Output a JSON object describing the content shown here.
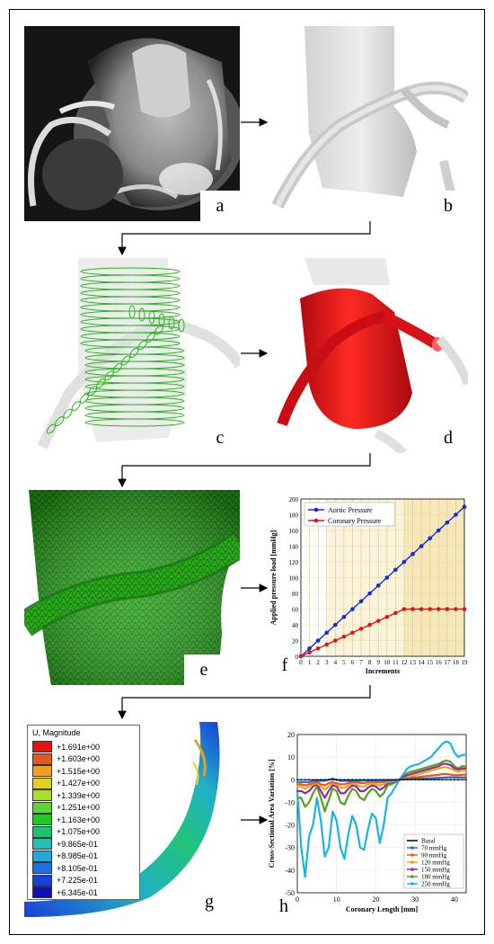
{
  "panels": {
    "a": "a",
    "b": "b",
    "c": "c",
    "d": "d",
    "e": "e",
    "f": "f",
    "g": "g",
    "h": "h"
  },
  "colors": {
    "aortic": "#1428e0",
    "coronary": "#e01414",
    "mesh_green": "#27a41c",
    "solid_red": "#e0141c",
    "ct_gray": "#8a8a8a"
  },
  "fem_legend": {
    "title": "U, Magnitude",
    "values": [
      "+1.691e+00",
      "+1.603e+00",
      "+1.515e+00",
      "+1.427e+00",
      "+1.339e+00",
      "+1.251e+00",
      "+1.163e+00",
      "+1.075e+00",
      "+9.865e-01",
      "+8.985e-01",
      "+8.105e-01",
      "+7.225e-01",
      "+6.345e-01"
    ],
    "colors": [
      "#e81010",
      "#e8561a",
      "#f0a020",
      "#e0d020",
      "#a8e020",
      "#58d830",
      "#20c828",
      "#20c070",
      "#20c0b8",
      "#20a8e0",
      "#2070e0",
      "#1840d8",
      "#1010b8"
    ]
  },
  "chart_data": [
    {
      "type": "line",
      "xlabel": "Increments",
      "ylabel": "Applied pressure load [mmHg]",
      "xlim": [
        0,
        19
      ],
      "ylim": [
        0,
        200
      ],
      "x": [
        0,
        1,
        2,
        3,
        4,
        5,
        6,
        7,
        8,
        9,
        10,
        11,
        12,
        13,
        14,
        15,
        16,
        17,
        18,
        19
      ],
      "xticks": [
        0,
        1,
        2,
        3,
        4,
        5,
        6,
        7,
        8,
        9,
        10,
        11,
        12,
        13,
        14,
        15,
        16,
        17,
        18,
        19
      ],
      "yticks": [
        0,
        20,
        40,
        60,
        80,
        100,
        120,
        140,
        160,
        180,
        200
      ],
      "legend_position": "top-left",
      "series": [
        {
          "name": "Aortic Pressure",
          "color": "#1428e0",
          "values": [
            0,
            10,
            20,
            30,
            40,
            50,
            60,
            70,
            80,
            90,
            100,
            110,
            120,
            130,
            140,
            150,
            160,
            170,
            180,
            190
          ]
        },
        {
          "name": "Coronary Pressure",
          "color": "#e01414",
          "values": [
            0,
            5,
            10,
            15,
            20,
            25,
            30,
            35,
            40,
            45,
            50,
            55,
            60,
            60,
            60,
            60,
            60,
            60,
            60,
            60
          ]
        }
      ]
    },
    {
      "type": "line",
      "xlabel": "Coronary Length [mm]",
      "ylabel": "Cross-Sectional Area Variation [%]",
      "xlim": [
        0,
        43
      ],
      "ylim": [
        -50,
        20
      ],
      "xticks": [
        0,
        10,
        20,
        30,
        40
      ],
      "yticks": [
        -50,
        -40,
        -30,
        -20,
        -10,
        0,
        10,
        20
      ],
      "legend_position": "bottom-right",
      "x": [
        0,
        1,
        2,
        3,
        4,
        5,
        6,
        7,
        8,
        9,
        10,
        11,
        12,
        13,
        14,
        15,
        16,
        17,
        18,
        19,
        20,
        21,
        22,
        23,
        24,
        25,
        26,
        27,
        28,
        29,
        30,
        31,
        32,
        33,
        34,
        35,
        36,
        37,
        38,
        39,
        40,
        41,
        42,
        43
      ],
      "series": [
        {
          "name": "Basal",
          "color": "#000000",
          "values": [
            0,
            0,
            0,
            0,
            0,
            0,
            0,
            0,
            0,
            0,
            0,
            0,
            0,
            0,
            0,
            0,
            0,
            0,
            0,
            0,
            0,
            0,
            0,
            0,
            0,
            0,
            0,
            0,
            0,
            0,
            0,
            0,
            0,
            0,
            0,
            0,
            0,
            0,
            0,
            0,
            0,
            0,
            0,
            0
          ]
        },
        {
          "name": "70 mmHg",
          "color": "#1f6fd1",
          "values": [
            -1,
            -1,
            -1,
            -1,
            -0.5,
            -0.5,
            -0.5,
            -0.5,
            0,
            0.5,
            0,
            -0.5,
            -0.5,
            -0.5,
            -0.5,
            -0.5,
            -0.5,
            -0.3,
            -0.3,
            -0.3,
            -0.3,
            -0.3,
            -0.3,
            -0.2,
            -0.2,
            -0.1,
            0,
            0.2,
            0.3,
            0.4,
            0.5,
            0.5,
            0.5,
            0.5,
            0.6,
            0.7,
            0.8,
            0.9,
            1,
            1.1,
            1,
            1,
            1,
            1
          ]
        },
        {
          "name": "90 mmHg",
          "color": "#f05a14",
          "values": [
            -2,
            -2,
            -2.5,
            -2,
            -1.5,
            -1,
            -2,
            -2.5,
            -1.5,
            -1,
            -1.5,
            -2,
            -2,
            -1.5,
            -1,
            -1,
            -1.5,
            -1.5,
            -1,
            -0.8,
            -1,
            -1.2,
            -1,
            -0.5,
            -0.4,
            -0.2,
            0,
            0.3,
            0.5,
            0.8,
            1,
            1.2,
            1.4,
            1.6,
            1.8,
            2,
            2.2,
            2.5,
            2.5,
            2.3,
            2,
            2,
            2.2,
            2.2
          ]
        },
        {
          "name": "120 mmHg",
          "color": "#f5a214",
          "values": [
            -3,
            -3,
            -4,
            -3,
            -2,
            -1.5,
            -3,
            -4.5,
            -3,
            -1.5,
            -2,
            -3.5,
            -3.5,
            -2.5,
            -1.5,
            -2,
            -3,
            -3,
            -2,
            -1.5,
            -2,
            -2.5,
            -2,
            -1,
            -0.8,
            -0.4,
            0,
            0.5,
            1,
            1.5,
            2,
            2.5,
            3,
            3.5,
            4,
            4.5,
            5,
            5.5,
            5.5,
            5,
            4,
            3.5,
            4,
            4
          ]
        },
        {
          "name": "150 mmHg",
          "color": "#8e2ca8",
          "values": [
            -5,
            -5,
            -6,
            -5,
            -3,
            -2,
            -5,
            -8,
            -5,
            -2.5,
            -3,
            -6,
            -6,
            -4,
            -2.5,
            -3,
            -5,
            -5,
            -3.5,
            -2.5,
            -3,
            -4.5,
            -3.5,
            -1.5,
            -1.2,
            -0.7,
            0,
            1,
            2,
            2.5,
            3,
            3.5,
            4,
            4.5,
            5,
            5.5,
            6,
            7,
            7,
            6.5,
            5,
            4.5,
            5,
            5
          ]
        },
        {
          "name": "180 mmHg",
          "color": "#5aa01e",
          "values": [
            -8,
            -8,
            -12,
            -10,
            -6,
            -3,
            -8,
            -14,
            -9,
            -4,
            -5,
            -10,
            -11,
            -7,
            -4,
            -5,
            -8,
            -9,
            -6,
            -4,
            -5,
            -7.5,
            -6,
            -2.5,
            -2,
            -1,
            0,
            1.5,
            3,
            3.5,
            4,
            4.5,
            5,
            5.5,
            6,
            6.5,
            7,
            8,
            8.5,
            8,
            6,
            5,
            6,
            6
          ]
        },
        {
          "name": "250 mmHg",
          "color": "#1ab4e6",
          "values": [
            -5,
            -30,
            -43,
            -25,
            -20,
            -8,
            -18,
            -34,
            -30,
            -14,
            -18,
            -30,
            -35,
            -24,
            -16,
            -20,
            -30,
            -31,
            -22,
            -15,
            -17,
            -28,
            -20,
            -8,
            -6,
            -3,
            0,
            2.5,
            5,
            6,
            6.5,
            7,
            8,
            9,
            10,
            12,
            14,
            16,
            17,
            16,
            12,
            10,
            11,
            11
          ]
        }
      ]
    }
  ]
}
